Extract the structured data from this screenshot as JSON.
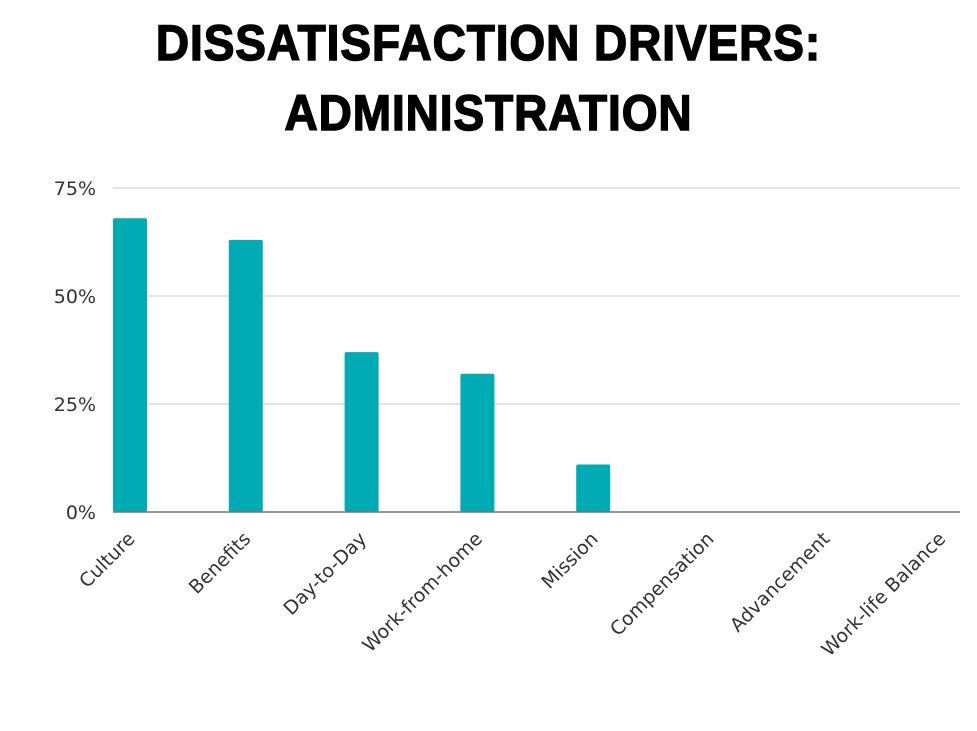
{
  "chart_data": {
    "type": "bar",
    "title_lines": [
      "DISSATISFACTION DRIVERS:",
      "ADMINISTRATION"
    ],
    "categories": [
      "Culture",
      "Benefits",
      "Day-to-Day",
      "Work-from-home",
      "Mission",
      "Compensation",
      "Advancement",
      "Work-life Balance"
    ],
    "values": [
      68,
      63,
      37,
      32,
      11,
      0,
      0,
      0
    ],
    "ylim": [
      0,
      75
    ],
    "yticks": [
      0,
      25,
      50,
      75
    ],
    "ytick_labels": [
      "0%",
      "25%",
      "50%",
      "75%"
    ],
    "xlabel": "",
    "ylabel": "",
    "grid": true,
    "bar_color": "#00abb3"
  }
}
